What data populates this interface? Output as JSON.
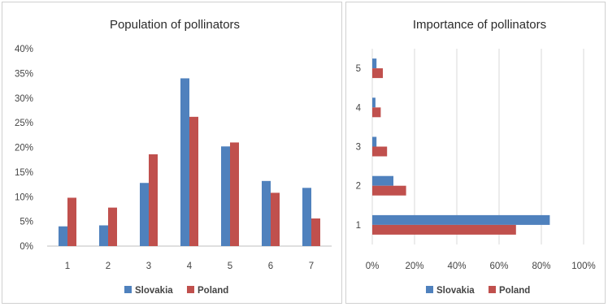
{
  "colors": {
    "slovakia": "#4f81bd",
    "poland": "#c0504d"
  },
  "chart_data": [
    {
      "type": "bar",
      "orientation": "vertical",
      "title": "Population of pollinators",
      "categories": [
        "1",
        "2",
        "3",
        "4",
        "5",
        "6",
        "7"
      ],
      "series": [
        {
          "name": "Slovakia",
          "values": [
            4,
            4.2,
            12.8,
            34,
            20.2,
            13.2,
            11.8
          ]
        },
        {
          "name": "Poland",
          "values": [
            9.8,
            7.8,
            18.6,
            26.2,
            21,
            10.8,
            5.6
          ]
        }
      ],
      "ylim": [
        0,
        40
      ],
      "yticks": [
        "0%",
        "5%",
        "10%",
        "15%",
        "20%",
        "25%",
        "30%",
        "35%",
        "40%"
      ],
      "grid": false,
      "legend_position": "bottom"
    },
    {
      "type": "bar",
      "orientation": "horizontal",
      "title": "Importance of pollinators",
      "categories": [
        "1",
        "2",
        "3",
        "4",
        "5"
      ],
      "series": [
        {
          "name": "Slovakia",
          "values": [
            84,
            10,
            2,
            1.5,
            2
          ]
        },
        {
          "name": "Poland",
          "values": [
            68,
            16,
            7,
            4,
            5
          ]
        }
      ],
      "xlim": [
        0,
        100
      ],
      "xticks": [
        "0%",
        "20%",
        "40%",
        "60%",
        "80%",
        "100%"
      ],
      "grid": true,
      "legend_position": "bottom"
    }
  ]
}
